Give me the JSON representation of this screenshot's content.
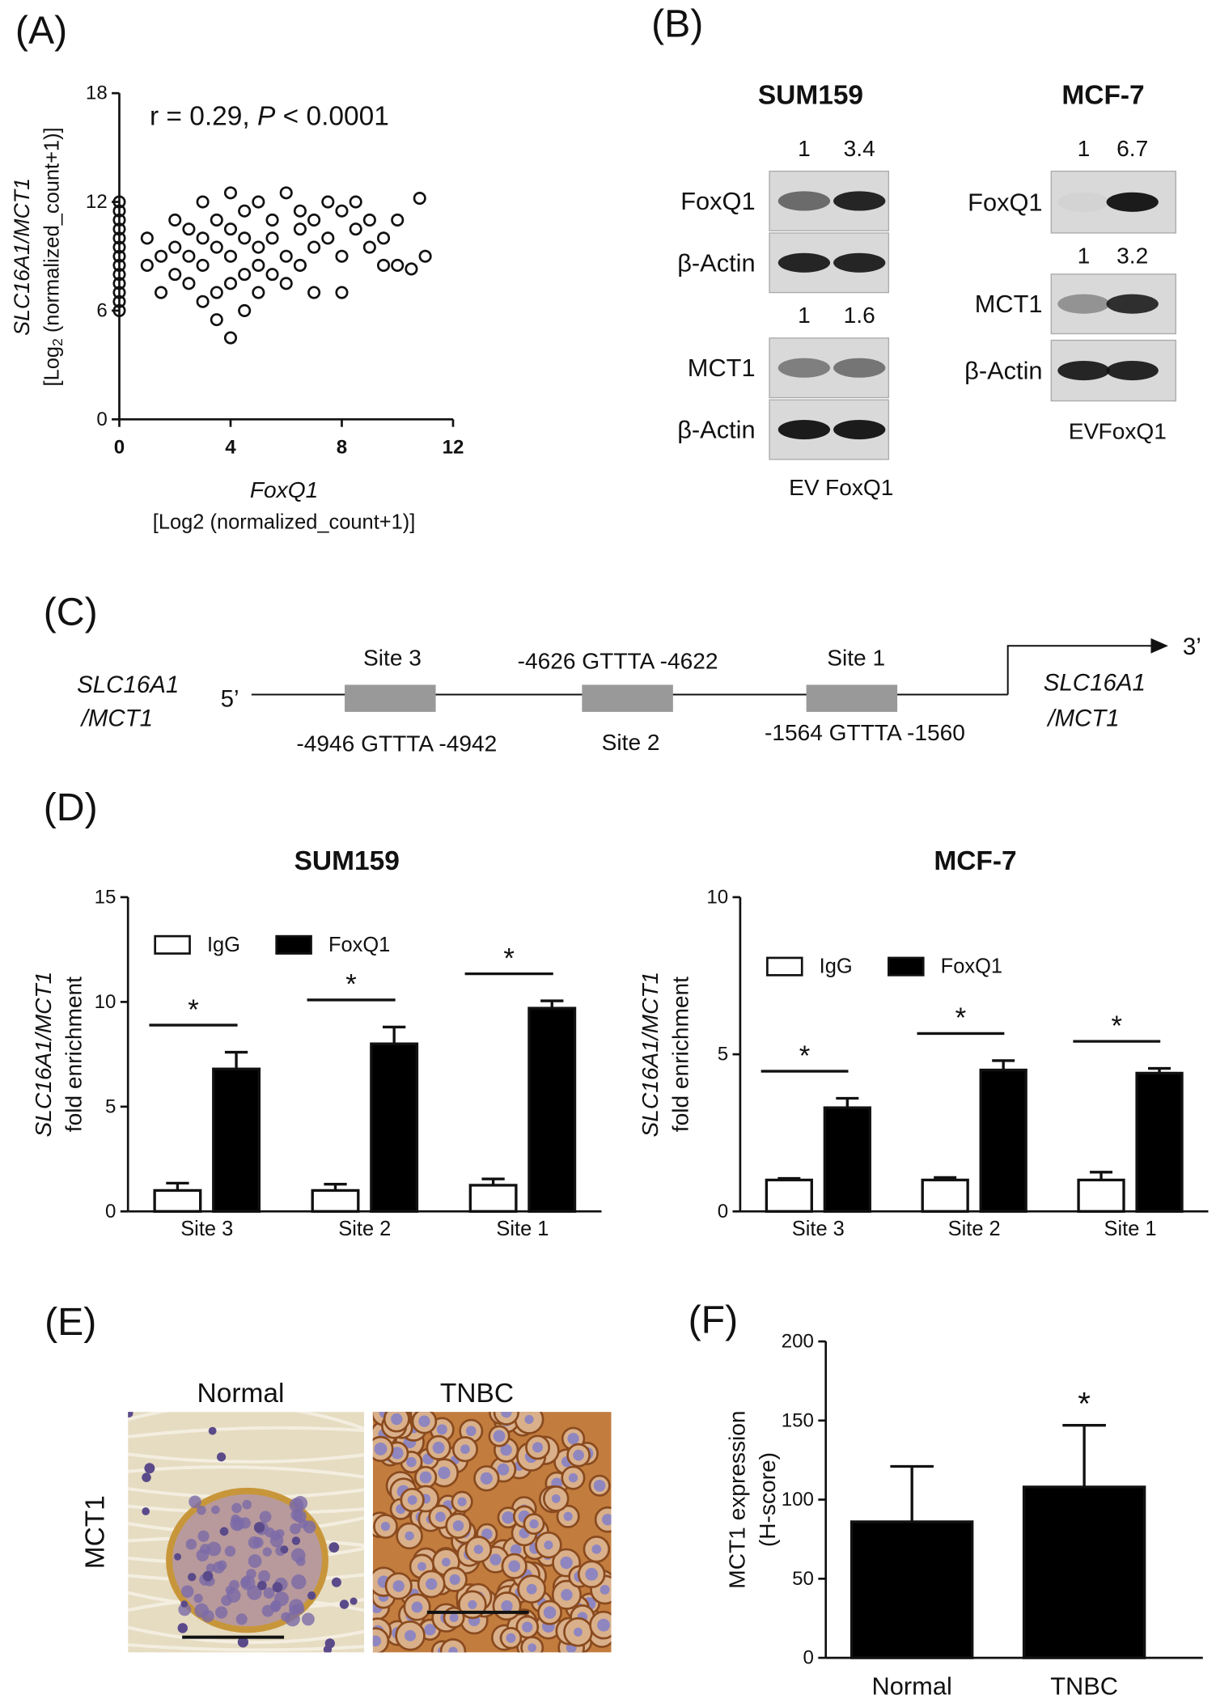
{
  "panels": [
    "(A)",
    "(B)",
    "(C)",
    "(D)",
    "(E)",
    "(F)"
  ],
  "chart_data": [
    {
      "type": "scatter",
      "annotation": [
        "r = 0.29, ",
        "P",
        " < 0.0001"
      ],
      "ylabel": "SLC16A1/MCT1",
      "ylabel_sub": [
        "[Log",
        "2",
        " (normalized_count+1)]"
      ],
      "xlabel": "FoxQ1",
      "xlabel_sub": "[Log2 (normalized_count+1)]",
      "xlim": [
        0,
        12
      ],
      "xticks": [
        0,
        4,
        8,
        12
      ],
      "ylim": [
        0,
        18
      ],
      "yticks": [
        0,
        6,
        12,
        18
      ],
      "x": [
        0,
        0,
        0,
        0,
        0,
        0,
        0,
        0,
        0,
        0,
        0,
        0,
        0,
        1,
        1,
        1.5,
        1.5,
        2,
        2,
        2,
        2.5,
        2.5,
        2.5,
        3,
        3,
        3,
        3,
        3.5,
        3.5,
        3.5,
        3.5,
        4,
        4,
        4,
        4,
        4,
        4.5,
        4.5,
        4.5,
        4.5,
        5,
        5,
        5,
        5,
        5.5,
        5.5,
        5.5,
        6,
        6,
        6,
        6.5,
        6.5,
        6.5,
        7,
        7,
        7,
        7.5,
        7.5,
        8,
        8,
        8,
        8.5,
        8.5,
        9,
        9,
        9.5,
        9.5,
        10,
        10,
        10.5,
        10.8,
        11
      ],
      "values": [
        6,
        7,
        8,
        9,
        10,
        11,
        12,
        6.5,
        7.5,
        8.5,
        9.5,
        10.5,
        11.5,
        8.5,
        10,
        9,
        7,
        11,
        9.5,
        8,
        10.5,
        7.5,
        9,
        12,
        10,
        8.5,
        6.5,
        11,
        9.5,
        7,
        5.5,
        12.5,
        10.5,
        9,
        7.5,
        4.5,
        11.5,
        10,
        8,
        6,
        12,
        9.5,
        8.5,
        7,
        11,
        10,
        8,
        12.5,
        9,
        7.5,
        10.5,
        11.5,
        8.5,
        11,
        9.5,
        7,
        12,
        10,
        11.5,
        9,
        7,
        10.5,
        12,
        9.5,
        11,
        10,
        8.5,
        11,
        8.5,
        8.3,
        12.2,
        9
      ]
    },
    {
      "type": "bar",
      "title": "SUM159",
      "ylabel": "SLC16A1/MCT1",
      "ylabel_sub": "fold enrichment",
      "categories": [
        "Site 3",
        "Site 2",
        "Site 1"
      ],
      "ylim": [
        0,
        15
      ],
      "yticks": [
        0,
        5,
        10,
        15
      ],
      "series": [
        {
          "name": "IgG",
          "color": "#ffffff",
          "values": [
            1.0,
            1.0,
            1.25
          ],
          "errors": [
            0.35,
            0.3,
            0.3
          ]
        },
        {
          "name": "FoxQ1",
          "color": "#000000",
          "values": [
            6.8,
            8.0,
            9.7
          ],
          "errors": [
            0.8,
            0.8,
            0.35
          ]
        }
      ],
      "significance": "*"
    },
    {
      "type": "bar",
      "title": "MCF-7",
      "ylabel": "SLC16A1/MCT1",
      "ylabel_sub": "fold enrichment",
      "categories": [
        "Site 3",
        "Site 2",
        "Site 1"
      ],
      "ylim": [
        0,
        10
      ],
      "yticks": [
        0,
        5,
        10
      ],
      "series": [
        {
          "name": "IgG",
          "color": "#ffffff",
          "values": [
            1.0,
            1.0,
            1.0
          ],
          "errors": [
            0.05,
            0.08,
            0.25
          ]
        },
        {
          "name": "FoxQ1",
          "color": "#000000",
          "values": [
            3.3,
            4.5,
            4.4
          ],
          "errors": [
            0.3,
            0.3,
            0.15
          ]
        }
      ],
      "significance": "*"
    },
    {
      "type": "bar",
      "ylabel": "MCT1 expression",
      "ylabel_sub": "(H-score)",
      "categories": [
        "Normal",
        "TNBC"
      ],
      "ylim": [
        0,
        200
      ],
      "yticks": [
        0,
        50,
        100,
        150,
        200
      ],
      "color": "#000000",
      "values": [
        86,
        108
      ],
      "errors": [
        35,
        39
      ],
      "significance": "*"
    }
  ],
  "blots": [
    {
      "title": "SUM159",
      "lanes": [
        "EV",
        "FoxQ1"
      ],
      "rows": [
        {
          "label": "FoxQ1",
          "quant": [
            "1",
            "3.4"
          ]
        },
        {
          "label": "β-Actin"
        },
        {
          "label": "MCT1",
          "quant": [
            "1",
            "1.6"
          ]
        },
        {
          "label": "β-Actin"
        }
      ]
    },
    {
      "title": "MCF-7",
      "lanes": [
        "EV",
        "FoxQ1"
      ],
      "rows": [
        {
          "label": "FoxQ1",
          "quant": [
            "1",
            "6.7"
          ]
        },
        {
          "label": "MCT1",
          "quant": [
            "1",
            "3.2"
          ]
        },
        {
          "label": "β-Actin"
        }
      ]
    }
  ],
  "promoter": {
    "gene_left": [
      "SLC16A1",
      "/MCT1"
    ],
    "five_prime": "5’",
    "three_prime": "3’",
    "gene_right": [
      "SLC16A1",
      "/MCT1"
    ],
    "sites": [
      {
        "name": "Site 3",
        "motif": "-4946 GTTTA -4942"
      },
      {
        "name": "Site 2",
        "motif": "-4626 GTTTA -4622"
      },
      {
        "name": "Site 1",
        "motif": "-1564 GTTTA -1560"
      }
    ]
  },
  "ihc": {
    "row_label": "MCT1",
    "columns": [
      "Normal",
      "TNBC"
    ]
  }
}
